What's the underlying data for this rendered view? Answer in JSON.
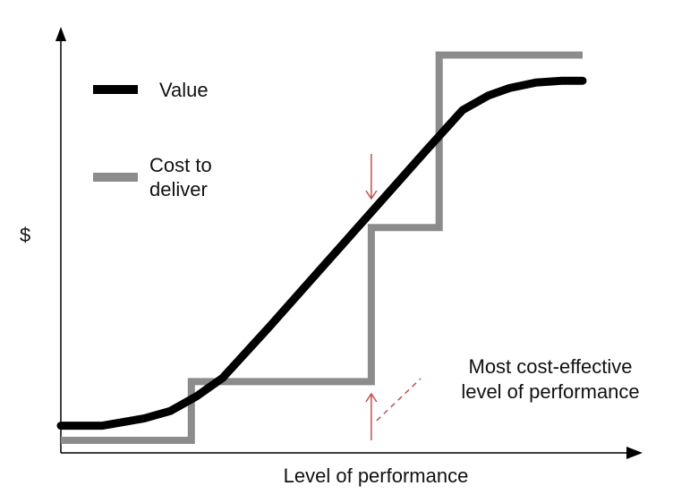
{
  "chart_data": {
    "type": "line",
    "title": "",
    "xlabel": "Level of performance",
    "ylabel": "$",
    "grid": false,
    "legend_placement": "top-left",
    "colors": {
      "value": "#000000",
      "cost": "#8c8c8c",
      "arrow": "#c0504d",
      "axis": "#000000"
    },
    "series": [
      {
        "name": "Value",
        "color": "#000000",
        "x": [
          0,
          8,
          16,
          21,
          26,
          31,
          40,
          50,
          60,
          70,
          77,
          82,
          86,
          91,
          96,
          100
        ],
        "y": [
          4,
          4,
          6,
          8,
          12,
          17,
          31,
          47,
          63,
          79,
          90,
          94,
          96,
          97.5,
          98,
          98
        ]
      },
      {
        "name": "Cost to deliver",
        "color": "#8c8c8c",
        "step": true,
        "x": [
          0,
          25,
          25,
          59.5,
          59.5,
          72.5,
          72.5,
          100
        ],
        "y": [
          0,
          0,
          16,
          16,
          58,
          58,
          105,
          105
        ]
      }
    ],
    "annotations": [
      {
        "text_lines": [
          "Most cost-effective",
          "level of performance"
        ],
        "x": 59.5
      }
    ]
  }
}
